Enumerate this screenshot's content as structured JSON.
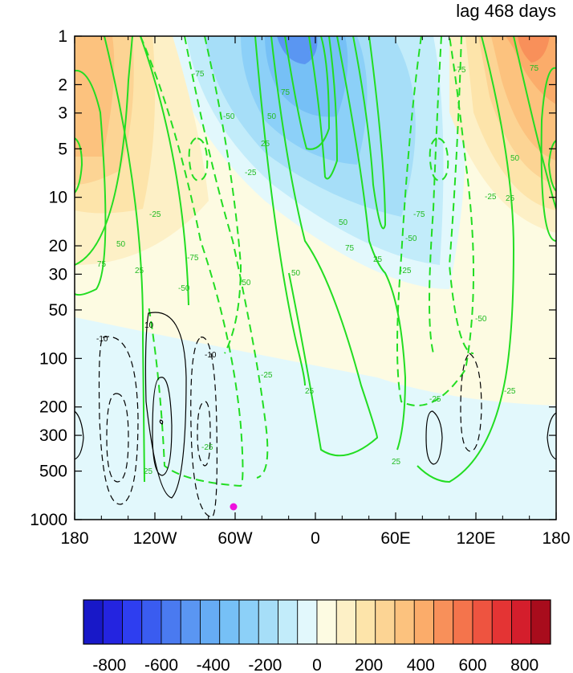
{
  "chart_data": {
    "type": "heatmap",
    "title": "lag 468 days",
    "xlabel": "",
    "ylabel": "",
    "x_ticks": [
      "180",
      "120W",
      "60W",
      "0",
      "60E",
      "120E",
      "180"
    ],
    "y_ticks": [
      "1",
      "2",
      "3",
      "5",
      "10",
      "20",
      "30",
      "50",
      "100",
      "200",
      "300",
      "500",
      "1000"
    ],
    "y_scale": "log",
    "y_inverted": true,
    "ylim": [
      1,
      1000
    ],
    "xlim_deg": [
      -180,
      180
    ],
    "colorbar": {
      "orientation": "horizontal",
      "range": [
        -900,
        900
      ],
      "step": 60,
      "tick_labels": [
        "-800",
        "-600",
        "-400",
        "-200",
        "0",
        "200",
        "400",
        "600",
        "800"
      ],
      "colors": [
        "#1818c8",
        "#2424e0",
        "#2e3ef0",
        "#3a5cf0",
        "#4a7af0",
        "#5a96f2",
        "#66acf4",
        "#76c0f6",
        "#8cd0f8",
        "#a6def8",
        "#c2ecfa",
        "#e2f8fc",
        "#fdfbe2",
        "#fdf0c6",
        "#fde4aa",
        "#fcd494",
        "#fcc27e",
        "#fbac6a",
        "#f8905a",
        "#f4744c",
        "#ee5440",
        "#e43434",
        "#d41e2c",
        "#a80c1c"
      ]
    },
    "green_contour_labels": [
      "75",
      "50",
      "25",
      "-25",
      "-50",
      "-75"
    ],
    "black_contour_labels": [
      "10",
      "-10"
    ],
    "marker": {
      "lon": -60,
      "pressure": 900,
      "color": "#ee11dd"
    }
  }
}
